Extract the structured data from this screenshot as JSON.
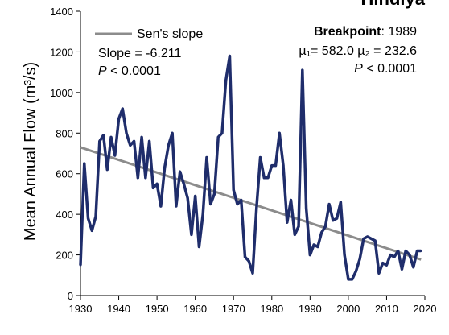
{
  "chart_data": {
    "type": "line",
    "title": "Hindiya",
    "ylabel": "Mean Annual Flow (m³/s)",
    "xlabel": "",
    "xlim": [
      1930,
      2020
    ],
    "ylim": [
      0,
      1400
    ],
    "x_ticks": [
      "1930",
      "1940",
      "1950",
      "1960",
      "1970",
      "1980",
      "1990",
      "2000",
      "2010",
      "2020"
    ],
    "y_ticks": [
      "0",
      "200",
      "400",
      "600",
      "800",
      "1000",
      "1200",
      "1400"
    ],
    "grid": false,
    "colors": {
      "flow": "#1f2d6b",
      "trend": "#8c8c8c"
    },
    "series": [
      {
        "x": [
          1930,
          1931,
          1932,
          1933,
          1934,
          1935,
          1936,
          1937,
          1938,
          1939,
          1940,
          1941,
          1942,
          1943,
          1944,
          1945,
          1946,
          1947,
          1948,
          1949,
          1950,
          1951,
          1952,
          1953,
          1954,
          1955,
          1956,
          1957,
          1958,
          1959,
          1960,
          1961,
          1962,
          1963,
          1964,
          1965,
          1966,
          1967,
          1968,
          1969,
          1970,
          1971,
          1972,
          1973,
          1974,
          1975,
          1976,
          1977,
          1978,
          1979,
          1980,
          1981,
          1982,
          1983,
          1984,
          1985,
          1986,
          1987,
          1988,
          1989,
          1990,
          1991,
          1992,
          1993,
          1994,
          1995,
          1996,
          1997,
          1998,
          1999,
          2000,
          2001,
          2002,
          2003,
          2004,
          2005,
          2006,
          2007,
          2008,
          2009,
          2010,
          2011,
          2012,
          2013,
          2014,
          2015,
          2016,
          2017,
          2018,
          2019
        ],
        "values": [
          150,
          650,
          380,
          320,
          390,
          760,
          790,
          620,
          780,
          690,
          870,
          920,
          800,
          740,
          760,
          580,
          780,
          580,
          760,
          530,
          550,
          440,
          630,
          740,
          800,
          440,
          610,
          550,
          480,
          300,
          490,
          240,
          400,
          680,
          450,
          500,
          780,
          800,
          1060,
          1180,
          520,
          450,
          470,
          190,
          170,
          110,
          430,
          680,
          580,
          580,
          640,
          640,
          800,
          640,
          360,
          470,
          300,
          340,
          1110,
          430,
          200,
          250,
          240,
          310,
          340,
          450,
          370,
          380,
          460,
          200,
          80,
          80,
          120,
          180,
          280,
          290,
          280,
          270,
          110,
          160,
          150,
          200,
          190,
          220,
          130,
          220,
          200,
          140,
          220,
          220
        ]
      },
      {
        "name": "Sen's slope",
        "x": [
          1930,
          2019
        ],
        "values": [
          730,
          177
        ]
      }
    ],
    "annotations": {
      "legend_label": "Sen's slope",
      "slope_text": "Slope = -6.211",
      "p_italic": "P",
      "p_value": " < 0.0001",
      "breakpoint_label": "Breakpoint",
      "breakpoint_value": ": 1989",
      "mu1_text": "µ₁= 582.0",
      "mu2_text": "µ₂ = 232.6",
      "p2_italic": "P",
      "p2_value": " < 0.0001"
    }
  }
}
